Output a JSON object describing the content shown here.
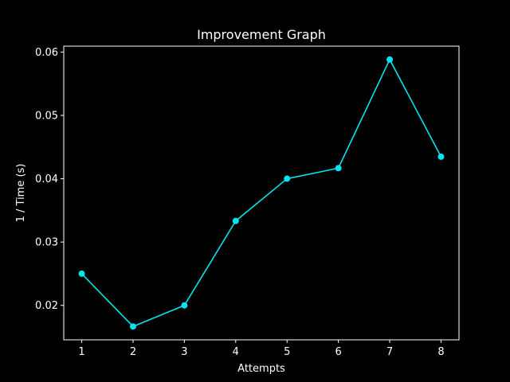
{
  "chart_data": {
    "type": "line",
    "title": "Improvement Graph",
    "xlabel": "Attempts",
    "ylabel": "1 / Time (s)",
    "x": [
      1,
      2,
      3,
      4,
      5,
      6,
      7,
      8
    ],
    "series": [
      {
        "values": [
          0.025,
          0.01667,
          0.02,
          0.03333,
          0.04,
          0.04167,
          0.05882,
          0.04348
        ],
        "color": "#00e5ee",
        "marker": "circle"
      }
    ],
    "x_ticks": [
      "1",
      "2",
      "3",
      "4",
      "5",
      "6",
      "7",
      "8"
    ],
    "y_ticks": [
      "0.02",
      "0.03",
      "0.04",
      "0.05",
      "0.06"
    ],
    "xlim": [
      0.65,
      8.35
    ],
    "ylim": [
      0.01456,
      0.06093
    ],
    "grid": false,
    "background": "#000000",
    "foreground": "#ffffff"
  }
}
